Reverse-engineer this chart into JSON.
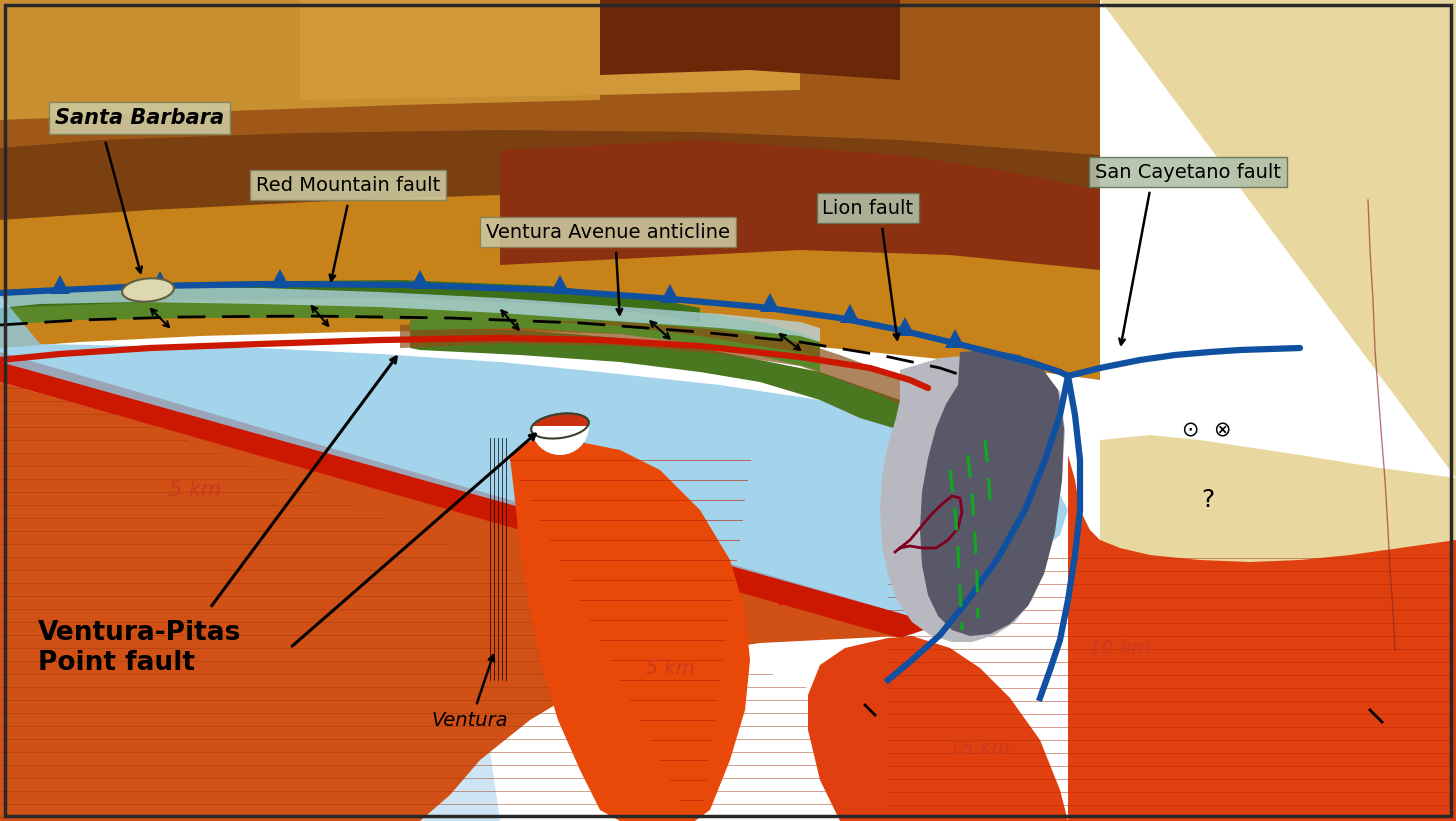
{
  "fig_width": 14.56,
  "fig_height": 8.21,
  "labels": {
    "santa_barbara": "Santa Barbara",
    "red_mountain_fault": "Red Mountain fault",
    "ventura_avenue_anticline": "Ventura Avenue anticline",
    "lion_fault": "Lion fault",
    "san_cayetano_fault": "San Cayetano fault",
    "ventura_pitas_point_fault": "Ventura-Pitas\nPoint fault",
    "ventura": "Ventura",
    "depth_5km_1": "5 km",
    "depth_5km_2": "5 km",
    "depth_10km": "10 km",
    "depth_15km": "15 km"
  }
}
